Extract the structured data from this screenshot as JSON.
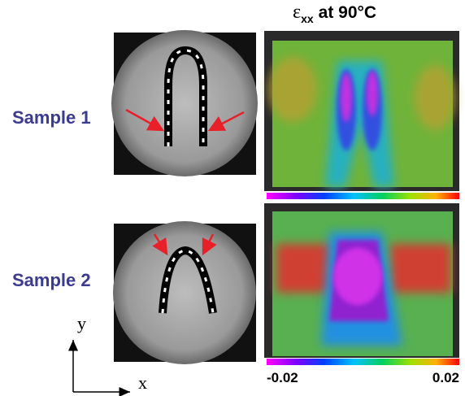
{
  "title": {
    "symbol": "ε",
    "subscript": "xx",
    "text": "at 90°C"
  },
  "samples": [
    {
      "label": "Sample 1"
    },
    {
      "label": "Sample 2"
    }
  ],
  "axes": {
    "y": "y",
    "x": "x"
  },
  "colorbar": {
    "min": "-0.02",
    "max": "0.02"
  }
}
